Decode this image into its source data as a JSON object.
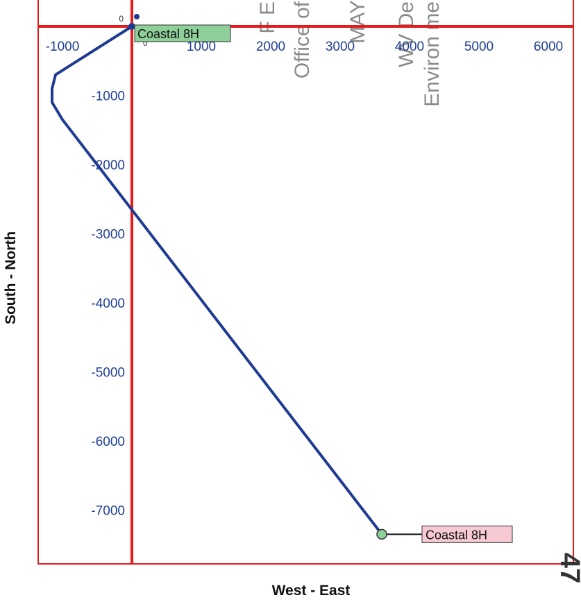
{
  "chart_data": {
    "type": "line",
    "title": "",
    "xlabel": "West - East",
    "ylabel": "South - North",
    "xlim": [
      -1350,
      6300
    ],
    "ylim": [
      -7800,
      350
    ],
    "x_ticks": [
      -1000,
      1000,
      2000,
      3000,
      4000,
      5000,
      6000
    ],
    "y_ticks": [
      -1000,
      -2000,
      -3000,
      -4000,
      -5000,
      -6000,
      -7000
    ],
    "origin_label": "0",
    "grid": false,
    "legend": "none",
    "series": [
      {
        "color": "#1f3a93",
        "x": [
          0,
          -1100,
          -1150,
          -1150,
          -1000,
          3600
        ],
        "y": [
          0,
          -700,
          -900,
          -1100,
          -1350,
          -7350
        ]
      }
    ],
    "reference_lines": {
      "x": 0,
      "y": 0,
      "color": "#e41a1c"
    },
    "annotations": [
      {
        "text": "Coastal 8H",
        "point": [
          0,
          0
        ],
        "fill": "#8fcf9a",
        "position": "right"
      },
      {
        "text": "Coastal 8H",
        "point": [
          3600,
          -7350
        ],
        "fill": "#f6c9d3",
        "position": "right"
      }
    ],
    "stamp_text": [
      "F E",
      "Office of",
      "MAY",
      "WV De",
      "Environ me"
    ],
    "stamp_fragment": "0",
    "handwritten": "47"
  }
}
